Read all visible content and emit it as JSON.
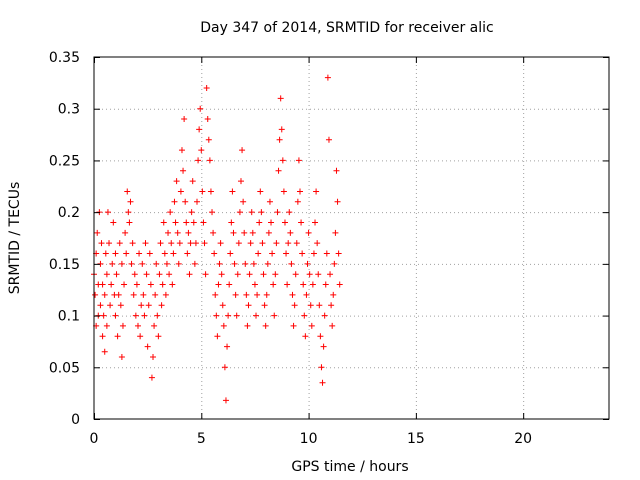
{
  "chart_data": {
    "type": "scatter",
    "title": "Day 347 of 2014, SRMTID for receiver alic",
    "xlabel": "GPS time / hours",
    "ylabel": "SRMTID / TECUs",
    "xlim": [
      0,
      24
    ],
    "ylim": [
      0,
      0.35
    ],
    "x_ticks": [
      "0",
      "5",
      "10",
      "15",
      "20"
    ],
    "y_ticks": [
      "0",
      "0.05",
      "0.1",
      "0.15",
      "0.2",
      "0.25",
      "0.3",
      "0.35"
    ],
    "x_tick_values": [
      0,
      5,
      10,
      15,
      20
    ],
    "y_tick_values": [
      0,
      0.05,
      0.1,
      0.15,
      0.2,
      0.25,
      0.3,
      0.35
    ],
    "grid": true,
    "marker": "+",
    "series_color": "#ff0000",
    "series": [
      {
        "name": "",
        "points": [
          [
            0.0,
            0.14
          ],
          [
            0.05,
            0.12
          ],
          [
            0.1,
            0.16
          ],
          [
            0.1,
            0.09
          ],
          [
            0.15,
            0.18
          ],
          [
            0.2,
            0.13
          ],
          [
            0.2,
            0.1
          ],
          [
            0.25,
            0.2
          ],
          [
            0.3,
            0.15
          ],
          [
            0.3,
            0.11
          ],
          [
            0.35,
            0.17
          ],
          [
            0.4,
            0.08
          ],
          [
            0.4,
            0.13
          ],
          [
            0.45,
            0.1
          ],
          [
            0.5,
            0.065
          ],
          [
            0.5,
            0.12
          ],
          [
            0.55,
            0.16
          ],
          [
            0.6,
            0.14
          ],
          [
            0.6,
            0.09
          ],
          [
            0.65,
            0.2
          ],
          [
            0.7,
            0.17
          ],
          [
            0.75,
            0.11
          ],
          [
            0.8,
            0.13
          ],
          [
            0.85,
            0.15
          ],
          [
            0.9,
            0.19
          ],
          [
            0.95,
            0.12
          ],
          [
            1.0,
            0.1
          ],
          [
            1.0,
            0.16
          ],
          [
            1.05,
            0.14
          ],
          [
            1.1,
            0.08
          ],
          [
            1.15,
            0.12
          ],
          [
            1.2,
            0.17
          ],
          [
            1.25,
            0.11
          ],
          [
            1.3,
            0.06
          ],
          [
            1.3,
            0.15
          ],
          [
            1.35,
            0.09
          ],
          [
            1.4,
            0.13
          ],
          [
            1.45,
            0.18
          ],
          [
            1.5,
            0.16
          ],
          [
            1.55,
            0.22
          ],
          [
            1.6,
            0.2
          ],
          [
            1.65,
            0.19
          ],
          [
            1.7,
            0.21
          ],
          [
            1.75,
            0.15
          ],
          [
            1.8,
            0.17
          ],
          [
            1.85,
            0.12
          ],
          [
            1.9,
            0.14
          ],
          [
            1.95,
            0.1
          ],
          [
            2.0,
            0.13
          ],
          [
            2.05,
            0.09
          ],
          [
            2.1,
            0.16
          ],
          [
            2.15,
            0.08
          ],
          [
            2.2,
            0.11
          ],
          [
            2.25,
            0.15
          ],
          [
            2.3,
            0.12
          ],
          [
            2.35,
            0.1
          ],
          [
            2.4,
            0.17
          ],
          [
            2.45,
            0.14
          ],
          [
            2.5,
            0.07
          ],
          [
            2.55,
            0.11
          ],
          [
            2.6,
            0.16
          ],
          [
            2.65,
            0.13
          ],
          [
            2.7,
            0.04
          ],
          [
            2.75,
            0.06
          ],
          [
            2.8,
            0.09
          ],
          [
            2.85,
            0.12
          ],
          [
            2.9,
            0.15
          ],
          [
            2.95,
            0.1
          ],
          [
            3.0,
            0.08
          ],
          [
            3.05,
            0.14
          ],
          [
            3.1,
            0.17
          ],
          [
            3.15,
            0.11
          ],
          [
            3.2,
            0.13
          ],
          [
            3.25,
            0.19
          ],
          [
            3.3,
            0.16
          ],
          [
            3.35,
            0.12
          ],
          [
            3.4,
            0.15
          ],
          [
            3.45,
            0.18
          ],
          [
            3.5,
            0.14
          ],
          [
            3.55,
            0.2
          ],
          [
            3.6,
            0.17
          ],
          [
            3.65,
            0.13
          ],
          [
            3.7,
            0.16
          ],
          [
            3.75,
            0.21
          ],
          [
            3.8,
            0.19
          ],
          [
            3.85,
            0.23
          ],
          [
            3.9,
            0.18
          ],
          [
            3.95,
            0.15
          ],
          [
            4.0,
            0.17
          ],
          [
            4.05,
            0.22
          ],
          [
            4.1,
            0.26
          ],
          [
            4.15,
            0.24
          ],
          [
            4.2,
            0.29
          ],
          [
            4.25,
            0.21
          ],
          [
            4.3,
            0.19
          ],
          [
            4.35,
            0.16
          ],
          [
            4.4,
            0.18
          ],
          [
            4.45,
            0.14
          ],
          [
            4.5,
            0.17
          ],
          [
            4.55,
            0.2
          ],
          [
            4.6,
            0.23
          ],
          [
            4.65,
            0.19
          ],
          [
            4.7,
            0.15
          ],
          [
            4.75,
            0.17
          ],
          [
            4.8,
            0.21
          ],
          [
            4.85,
            0.25
          ],
          [
            4.9,
            0.28
          ],
          [
            4.95,
            0.3
          ],
          [
            5.0,
            0.26
          ],
          [
            5.05,
            0.22
          ],
          [
            5.1,
            0.19
          ],
          [
            5.15,
            0.17
          ],
          [
            5.2,
            0.14
          ],
          [
            5.25,
            0.32
          ],
          [
            5.3,
            0.29
          ],
          [
            5.35,
            0.27
          ],
          [
            5.4,
            0.25
          ],
          [
            5.45,
            0.22
          ],
          [
            5.5,
            0.2
          ],
          [
            5.55,
            0.18
          ],
          [
            5.6,
            0.16
          ],
          [
            5.65,
            0.12
          ],
          [
            5.7,
            0.1
          ],
          [
            5.75,
            0.08
          ],
          [
            5.8,
            0.13
          ],
          [
            5.85,
            0.15
          ],
          [
            5.9,
            0.17
          ],
          [
            5.95,
            0.14
          ],
          [
            6.0,
            0.11
          ],
          [
            6.05,
            0.09
          ],
          [
            6.1,
            0.05
          ],
          [
            6.15,
            0.018
          ],
          [
            6.2,
            0.07
          ],
          [
            6.25,
            0.1
          ],
          [
            6.3,
            0.13
          ],
          [
            6.35,
            0.16
          ],
          [
            6.4,
            0.19
          ],
          [
            6.45,
            0.22
          ],
          [
            6.5,
            0.18
          ],
          [
            6.55,
            0.15
          ],
          [
            6.6,
            0.12
          ],
          [
            6.65,
            0.1
          ],
          [
            6.7,
            0.14
          ],
          [
            6.75,
            0.17
          ],
          [
            6.8,
            0.2
          ],
          [
            6.85,
            0.23
          ],
          [
            6.9,
            0.26
          ],
          [
            6.95,
            0.21
          ],
          [
            7.0,
            0.18
          ],
          [
            7.05,
            0.15
          ],
          [
            7.1,
            0.12
          ],
          [
            7.15,
            0.09
          ],
          [
            7.2,
            0.11
          ],
          [
            7.25,
            0.14
          ],
          [
            7.3,
            0.17
          ],
          [
            7.35,
            0.2
          ],
          [
            7.4,
            0.18
          ],
          [
            7.45,
            0.15
          ],
          [
            7.5,
            0.13
          ],
          [
            7.55,
            0.1
          ],
          [
            7.6,
            0.12
          ],
          [
            7.65,
            0.16
          ],
          [
            7.7,
            0.19
          ],
          [
            7.75,
            0.22
          ],
          [
            7.8,
            0.2
          ],
          [
            7.85,
            0.17
          ],
          [
            7.9,
            0.14
          ],
          [
            7.95,
            0.11
          ],
          [
            8.0,
            0.09
          ],
          [
            8.05,
            0.12
          ],
          [
            8.1,
            0.15
          ],
          [
            8.15,
            0.18
          ],
          [
            8.2,
            0.21
          ],
          [
            8.25,
            0.19
          ],
          [
            8.3,
            0.16
          ],
          [
            8.35,
            0.13
          ],
          [
            8.4,
            0.1
          ],
          [
            8.45,
            0.14
          ],
          [
            8.5,
            0.17
          ],
          [
            8.55,
            0.2
          ],
          [
            8.6,
            0.24
          ],
          [
            8.65,
            0.27
          ],
          [
            8.7,
            0.31
          ],
          [
            8.75,
            0.28
          ],
          [
            8.8,
            0.25
          ],
          [
            8.85,
            0.22
          ],
          [
            8.9,
            0.19
          ],
          [
            8.95,
            0.16
          ],
          [
            9.0,
            0.13
          ],
          [
            9.05,
            0.17
          ],
          [
            9.1,
            0.2
          ],
          [
            9.15,
            0.18
          ],
          [
            9.2,
            0.15
          ],
          [
            9.25,
            0.12
          ],
          [
            9.3,
            0.09
          ],
          [
            9.35,
            0.11
          ],
          [
            9.4,
            0.14
          ],
          [
            9.45,
            0.17
          ],
          [
            9.5,
            0.21
          ],
          [
            9.55,
            0.25
          ],
          [
            9.6,
            0.22
          ],
          [
            9.65,
            0.19
          ],
          [
            9.7,
            0.16
          ],
          [
            9.75,
            0.13
          ],
          [
            9.8,
            0.1
          ],
          [
            9.85,
            0.08
          ],
          [
            9.9,
            0.12
          ],
          [
            9.95,
            0.15
          ],
          [
            10.0,
            0.18
          ],
          [
            10.05,
            0.14
          ],
          [
            10.1,
            0.11
          ],
          [
            10.15,
            0.09
          ],
          [
            10.2,
            0.13
          ],
          [
            10.25,
            0.16
          ],
          [
            10.3,
            0.19
          ],
          [
            10.35,
            0.22
          ],
          [
            10.4,
            0.17
          ],
          [
            10.45,
            0.14
          ],
          [
            10.5,
            0.11
          ],
          [
            10.55,
            0.08
          ],
          [
            10.6,
            0.05
          ],
          [
            10.65,
            0.035
          ],
          [
            10.7,
            0.07
          ],
          [
            10.75,
            0.1
          ],
          [
            10.8,
            0.13
          ],
          [
            10.85,
            0.16
          ],
          [
            10.9,
            0.33
          ],
          [
            10.95,
            0.27
          ],
          [
            11.0,
            0.14
          ],
          [
            11.05,
            0.11
          ],
          [
            11.1,
            0.09
          ],
          [
            11.15,
            0.12
          ],
          [
            11.2,
            0.15
          ],
          [
            11.25,
            0.18
          ],
          [
            11.3,
            0.24
          ],
          [
            11.35,
            0.21
          ],
          [
            11.4,
            0.16
          ],
          [
            11.45,
            0.13
          ]
        ]
      }
    ]
  }
}
